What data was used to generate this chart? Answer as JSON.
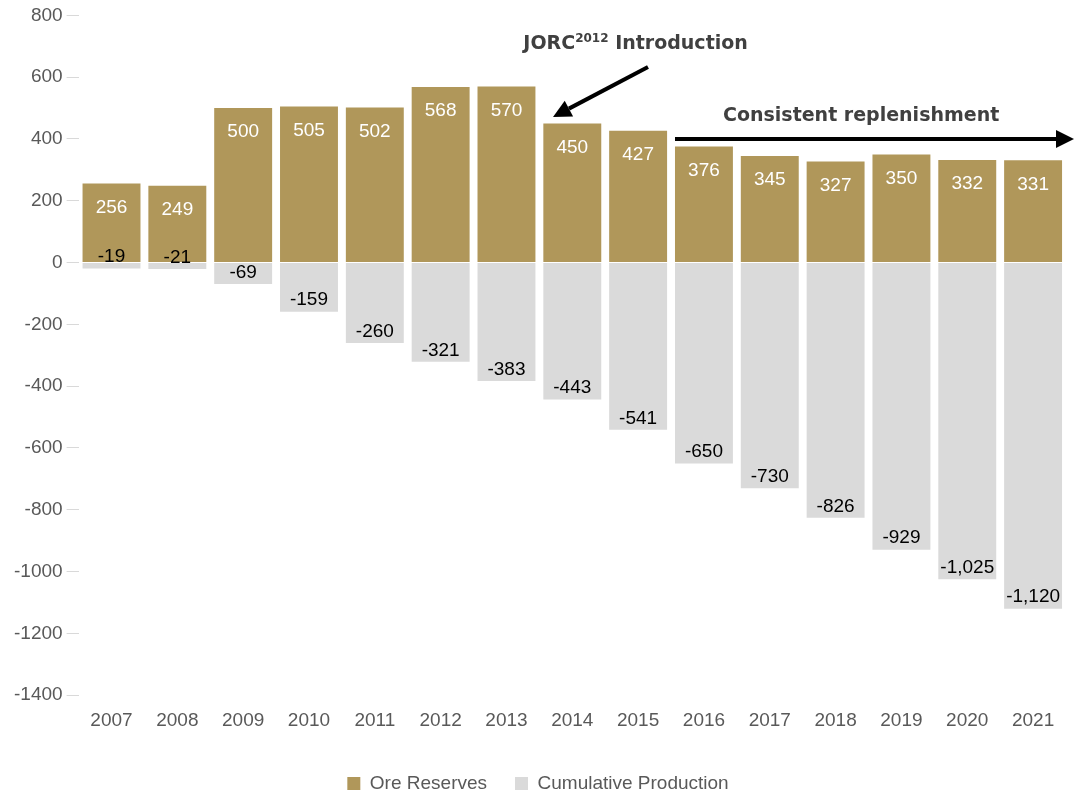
{
  "chart_data": {
    "type": "bar",
    "stacked": true,
    "categories": [
      "2007",
      "2008",
      "2009",
      "2010",
      "2011",
      "2012",
      "2013",
      "2014",
      "2015",
      "2016",
      "2017",
      "2018",
      "2019",
      "2020",
      "2021"
    ],
    "series": [
      {
        "name": "Ore Reserves",
        "color": "#b0975a",
        "values": [
          256,
          249,
          500,
          505,
          502,
          568,
          570,
          450,
          427,
          376,
          345,
          327,
          350,
          332,
          331
        ],
        "value_labels": [
          "256",
          "249",
          "500",
          "505",
          "502",
          "568",
          "570",
          "450",
          "427",
          "376",
          "345",
          "327",
          "350",
          "332",
          "331"
        ]
      },
      {
        "name": "Cumulative Production",
        "color": "#dadada",
        "values": [
          -19,
          -21,
          -69,
          -159,
          -260,
          -321,
          -383,
          -443,
          -541,
          -650,
          -730,
          -826,
          -929,
          -1025,
          -1120
        ],
        "value_labels": [
          "-19",
          "-21",
          "-69",
          "-159",
          "-260",
          "-321",
          "-383",
          "-443",
          "-541",
          "-650",
          "-730",
          "-826",
          "-929",
          "-1,025",
          "-1,120"
        ]
      }
    ],
    "ylim": [
      -1400,
      800
    ],
    "yticks": [
      -1400,
      -1200,
      -1000,
      -800,
      -600,
      -400,
      -200,
      0,
      200,
      400,
      600,
      800
    ],
    "grid": false,
    "legend": "bottom",
    "annotations": [
      "JORC$^{2012}$ Introduction",
      "Consistent replenishment"
    ]
  }
}
